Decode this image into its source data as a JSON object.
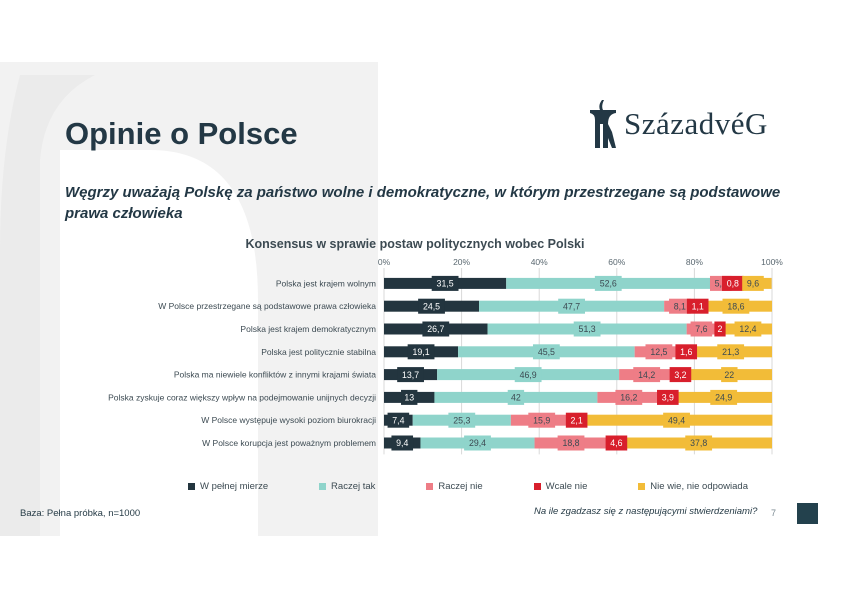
{
  "slide": {
    "title": "Opinie o Polsce",
    "subtitle": "Węgrzy uważają Polskę za państwo wolne i demokratyczne, w którym przestrzegane są podstawowe prawa człowieka",
    "logo_text": "SzázadvéG",
    "base_note": "Baza: Pełna próbka, n=1000",
    "question": "Na ile zgadzasz się z następującymi stwierdzeniami?",
    "page_number": "7"
  },
  "colors": {
    "title": "#233845",
    "background_shape": "#f1f1f1",
    "corner_box": "#23414d"
  },
  "chart_data": {
    "type": "bar",
    "orientation": "horizontal",
    "stacked": true,
    "title": "Konsensus w sprawie postaw politycznych wobec Polski",
    "x_ticks": [
      "0%",
      "20%",
      "40%",
      "60%",
      "80%",
      "100%"
    ],
    "xlim": [
      0,
      100
    ],
    "legend_position": "bottom",
    "categories": [
      "Polska jest krajem wolnym",
      "W Polsce przestrzegane są podstawowe prawa człowieka",
      "Polska jest krajem demokratycznym",
      "Polska jest politycznie stabilna",
      "Polska ma niewiele konfliktów z innymi krajami świata",
      "Polska zyskuje coraz większy wpływ na podejmowanie unijnych decyzji",
      "W Polsce występuje wysoki poziom biurokracji",
      "W Polsce korupcja jest poważnym problemem"
    ],
    "series": [
      {
        "name": "W pełnej mierze",
        "color": "#23353f",
        "label_color": "#ffffff",
        "values": [
          31.5,
          24.5,
          26.7,
          19.1,
          13.7,
          13,
          7.4,
          9.4
        ],
        "labels": [
          "31,5",
          "24,5",
          "26,7",
          "19,1",
          "13,7",
          "13",
          "7,4",
          "9,4"
        ]
      },
      {
        "name": "Raczej tak",
        "color": "#8fd4cb",
        "label_color": "#3c4a52",
        "values": [
          52.6,
          47.7,
          51.3,
          45.5,
          46.9,
          42,
          25.3,
          29.4
        ],
        "labels": [
          "52,6",
          "47,7",
          "51,3",
          "45,5",
          "46,9",
          "42",
          "25,3",
          "29,4"
        ]
      },
      {
        "name": "Raczej nie",
        "color": "#ee7d86",
        "label_color": "#3c4a52",
        "values": [
          5.4,
          8.1,
          7.6,
          12.5,
          14.2,
          16.2,
          15.9,
          18.8
        ],
        "labels": [
          "5,4",
          "8,1",
          "7,6",
          "12,5",
          "14,2",
          "16,2",
          "15,9",
          "18,8"
        ]
      },
      {
        "name": "Wcale nie",
        "color": "#d81f2c",
        "label_color": "#ffffff",
        "values": [
          0.8,
          1.1,
          2,
          1.6,
          3.2,
          3.9,
          2.1,
          4.6
        ],
        "labels": [
          "0,8",
          "1,1",
          "2",
          "1,6",
          "3,2",
          "3,9",
          "2,1",
          "4,6"
        ]
      },
      {
        "name": "Nie wie, nie odpowiada",
        "color": "#f2bc38",
        "label_color": "#3c4a52",
        "values": [
          9.6,
          18.6,
          12.4,
          21.3,
          22,
          24.9,
          49.4,
          37.8
        ],
        "labels": [
          "9,6",
          "18,6",
          "12,4",
          "21,3",
          "22",
          "24,9",
          "49,4",
          "37,8"
        ]
      }
    ]
  }
}
